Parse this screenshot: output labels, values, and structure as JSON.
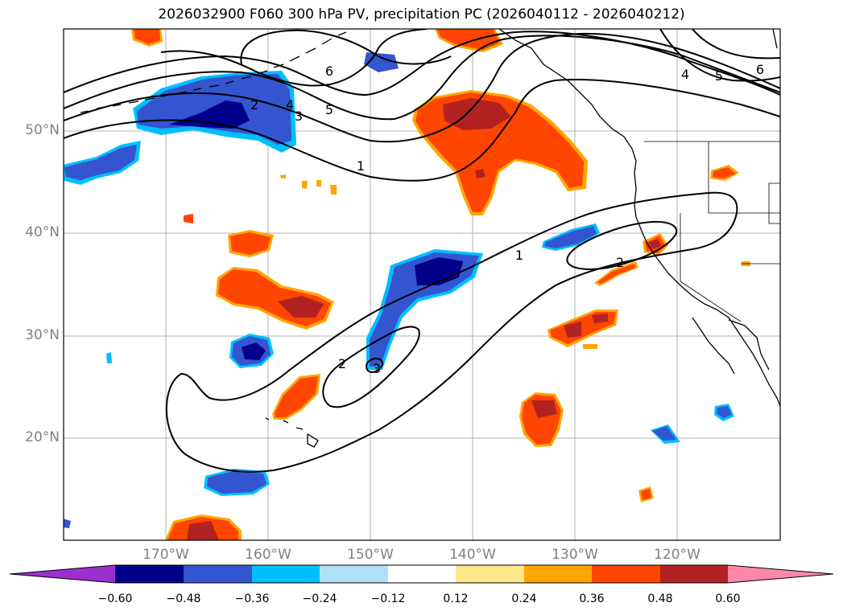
{
  "title": "2026032900 F060 300 hPa PV, precipitation PC (2026040112 - 2026040212)",
  "longitude_labels": [
    "170°W",
    "160°W",
    "150°W",
    "140°W",
    "130°W",
    "120°W"
  ],
  "latitude_labels": [
    "50°N",
    "40°N",
    "30°N",
    "20°N"
  ],
  "contour_labels": [
    "6",
    "5",
    "4",
    "3",
    "2",
    "1",
    "6",
    "5",
    "4",
    "1",
    "2",
    "2",
    "3"
  ],
  "colorbar": {
    "ticks": [
      "−0.60",
      "−0.48",
      "−0.36",
      "−0.24",
      "−0.12",
      "0.12",
      "0.24",
      "0.36",
      "0.48",
      "0.60"
    ],
    "colors": [
      "#9b30d0",
      "#00008b",
      "#3355d0",
      "#00bfff",
      "#b0e0f8",
      "#ffffff",
      "#ffe88a",
      "#ffa500",
      "#ff4500",
      "#b22222",
      "#ff88aa"
    ]
  }
}
